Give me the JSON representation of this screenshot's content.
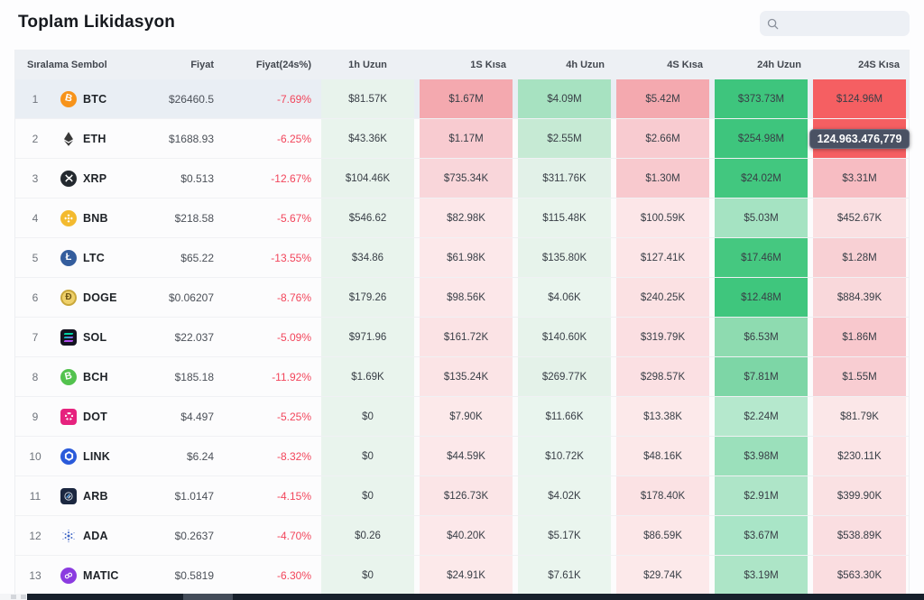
{
  "page": {
    "title": "Toplam Likidasyon",
    "search_placeholder": ""
  },
  "table": {
    "headers": {
      "rank_symbol": "Sıralama Sembol",
      "price": "Fiyat",
      "change": "Fiyat(24s%)",
      "cols": [
        "1h Uzun",
        "1S Kısa",
        "4h Uzun",
        "4S Kısa",
        "24h Uzun",
        "24S Kısa"
      ]
    },
    "tooltip": {
      "text": "124.963.476,779",
      "row_index": 1,
      "col_index": 5
    },
    "colors": {
      "positive_strong": "#3ec57d",
      "negative_strong": "#f55f62",
      "change_text": "#f2455b"
    },
    "rows": [
      {
        "rank": "1",
        "symbol": "BTC",
        "icon": "btc-icon",
        "price": "$26460.5",
        "change": "-7.69%",
        "highlight": true,
        "cells": [
          {
            "v": "$81.57K",
            "bg": "#e8f3ec"
          },
          {
            "v": "$1.67M",
            "bg": "#f4a9af"
          },
          {
            "v": "$4.09M",
            "bg": "#a7e2c1"
          },
          {
            "v": "$5.42M",
            "bg": "#f4a9af"
          },
          {
            "v": "$373.73M",
            "bg": "#3ec57d"
          },
          {
            "v": "$124.96M",
            "bg": "#f55f62"
          }
        ]
      },
      {
        "rank": "2",
        "symbol": "ETH",
        "icon": "eth-icon",
        "price": "$1688.93",
        "change": "-6.25%",
        "highlight": false,
        "cells": [
          {
            "v": "$43.36K",
            "bg": "#e9f4ed"
          },
          {
            "v": "$1.17M",
            "bg": "#f8cbd0"
          },
          {
            "v": "$2.55M",
            "bg": "#c6ead4"
          },
          {
            "v": "$2.66M",
            "bg": "#f8cbd0"
          },
          {
            "v": "$254.98M",
            "bg": "#3ec57d"
          },
          {
            "v": "",
            "bg": "#f55f62"
          }
        ]
      },
      {
        "rank": "3",
        "symbol": "XRP",
        "icon": "xrp-icon",
        "price": "$0.513",
        "change": "-12.67%",
        "highlight": false,
        "cells": [
          {
            "v": "$104.46K",
            "bg": "#e8f3ec"
          },
          {
            "v": "$735.34K",
            "bg": "#f9d6da"
          },
          {
            "v": "$311.76K",
            "bg": "#e2f1e8"
          },
          {
            "v": "$1.30M",
            "bg": "#f8c9ce"
          },
          {
            "v": "$24.02M",
            "bg": "#42c77f"
          },
          {
            "v": "$3.31M",
            "bg": "#f7bcc2"
          }
        ]
      },
      {
        "rank": "4",
        "symbol": "BNB",
        "icon": "bnb-icon",
        "price": "$218.58",
        "change": "-5.67%",
        "highlight": false,
        "cells": [
          {
            "v": "$546.62",
            "bg": "#e9f4ed"
          },
          {
            "v": "$82.98K",
            "bg": "#fce7e9"
          },
          {
            "v": "$115.48K",
            "bg": "#e8f4ec"
          },
          {
            "v": "$100.59K",
            "bg": "#fce6e8"
          },
          {
            "v": "$5.03M",
            "bg": "#a5e3c2"
          },
          {
            "v": "$452.67K",
            "bg": "#fae0e2"
          }
        ]
      },
      {
        "rank": "5",
        "symbol": "LTC",
        "icon": "ltc-icon",
        "price": "$65.22",
        "change": "-13.55%",
        "highlight": false,
        "cells": [
          {
            "v": "$34.86",
            "bg": "#e9f4ed"
          },
          {
            "v": "$61.98K",
            "bg": "#fce8ea"
          },
          {
            "v": "$135.80K",
            "bg": "#e7f3eb"
          },
          {
            "v": "$127.41K",
            "bg": "#fce5e7"
          },
          {
            "v": "$17.46M",
            "bg": "#45c880"
          },
          {
            "v": "$1.28M",
            "bg": "#f8d0d4"
          }
        ]
      },
      {
        "rank": "6",
        "symbol": "DOGE",
        "icon": "doge-icon",
        "price": "$0.06207",
        "change": "-8.76%",
        "highlight": false,
        "cells": [
          {
            "v": "$179.26",
            "bg": "#e9f4ed"
          },
          {
            "v": "$98.56K",
            "bg": "#fce7e9"
          },
          {
            "v": "$4.06K",
            "bg": "#eaf5ee"
          },
          {
            "v": "$240.25K",
            "bg": "#fbe1e3"
          },
          {
            "v": "$12.48M",
            "bg": "#3fc67d"
          },
          {
            "v": "$884.39K",
            "bg": "#f9d8db"
          }
        ]
      },
      {
        "rank": "7",
        "symbol": "SOL",
        "icon": "sol-icon",
        "price": "$22.037",
        "change": "-5.09%",
        "highlight": false,
        "cells": [
          {
            "v": "$971.96",
            "bg": "#e9f4ed"
          },
          {
            "v": "$161.72K",
            "bg": "#fbe3e5"
          },
          {
            "v": "$140.60K",
            "bg": "#e7f3eb"
          },
          {
            "v": "$319.79K",
            "bg": "#fbdfe2"
          },
          {
            "v": "$6.53M",
            "bg": "#8edbb0"
          },
          {
            "v": "$1.86M",
            "bg": "#f8c8cd"
          }
        ]
      },
      {
        "rank": "8",
        "symbol": "BCH",
        "icon": "bch-icon",
        "price": "$185.18",
        "change": "-11.92%",
        "highlight": false,
        "cells": [
          {
            "v": "$1.69K",
            "bg": "#e9f4ed"
          },
          {
            "v": "$135.24K",
            "bg": "#fbe4e6"
          },
          {
            "v": "$269.77K",
            "bg": "#e4f2e9"
          },
          {
            "v": "$298.57K",
            "bg": "#fbe0e3"
          },
          {
            "v": "$7.81M",
            "bg": "#7dd6a6"
          },
          {
            "v": "$1.55M",
            "bg": "#f8cdd2"
          }
        ]
      },
      {
        "rank": "9",
        "symbol": "DOT",
        "icon": "dot-icon",
        "price": "$4.497",
        "change": "-5.25%",
        "highlight": false,
        "cells": [
          {
            "v": "$0",
            "bg": "#e9f4ed"
          },
          {
            "v": "$7.90K",
            "bg": "#fce9ea"
          },
          {
            "v": "$11.66K",
            "bg": "#e9f5ee"
          },
          {
            "v": "$13.38K",
            "bg": "#fce9ea"
          },
          {
            "v": "$2.24M",
            "bg": "#b5e8cd"
          },
          {
            "v": "$81.79K",
            "bg": "#fbe7e8"
          }
        ]
      },
      {
        "rank": "10",
        "symbol": "LINK",
        "icon": "link-icon",
        "price": "$6.24",
        "change": "-8.32%",
        "highlight": false,
        "cells": [
          {
            "v": "$0",
            "bg": "#e9f4ed"
          },
          {
            "v": "$44.59K",
            "bg": "#fce8ea"
          },
          {
            "v": "$10.72K",
            "bg": "#e9f5ee"
          },
          {
            "v": "$48.16K",
            "bg": "#fce8e9"
          },
          {
            "v": "$3.98M",
            "bg": "#9be0bb"
          },
          {
            "v": "$230.11K",
            "bg": "#fbe4e6"
          }
        ]
      },
      {
        "rank": "11",
        "symbol": "ARB",
        "icon": "arb-icon",
        "price": "$1.0147",
        "change": "-4.15%",
        "highlight": false,
        "cells": [
          {
            "v": "$0",
            "bg": "#e9f4ed"
          },
          {
            "v": "$126.73K",
            "bg": "#fbe5e7"
          },
          {
            "v": "$4.02K",
            "bg": "#eaf5ee"
          },
          {
            "v": "$178.40K",
            "bg": "#fbe2e4"
          },
          {
            "v": "$2.91M",
            "bg": "#aee5c8"
          },
          {
            "v": "$399.90K",
            "bg": "#fae1e3"
          }
        ]
      },
      {
        "rank": "12",
        "symbol": "ADA",
        "icon": "ada-icon",
        "price": "$0.2637",
        "change": "-4.70%",
        "highlight": false,
        "cells": [
          {
            "v": "$0.26",
            "bg": "#e9f4ed"
          },
          {
            "v": "$40.20K",
            "bg": "#fce8ea"
          },
          {
            "v": "$5.17K",
            "bg": "#eaf5ee"
          },
          {
            "v": "$86.59K",
            "bg": "#fce7e8"
          },
          {
            "v": "$3.67M",
            "bg": "#a9e5c7"
          },
          {
            "v": "$538.89K",
            "bg": "#fadee1"
          }
        ]
      },
      {
        "rank": "13",
        "symbol": "MATIC",
        "icon": "matic-icon",
        "price": "$0.5819",
        "change": "-6.30%",
        "highlight": false,
        "cells": [
          {
            "v": "$0",
            "bg": "#e9f4ed"
          },
          {
            "v": "$24.91K",
            "bg": "#fce9ea"
          },
          {
            "v": "$7.61K",
            "bg": "#eaf5ee"
          },
          {
            "v": "$29.74K",
            "bg": "#fce9ea"
          },
          {
            "v": "$3.19M",
            "bg": "#ade5c7"
          },
          {
            "v": "$563.30K",
            "bg": "#fadde0"
          }
        ]
      }
    ]
  }
}
